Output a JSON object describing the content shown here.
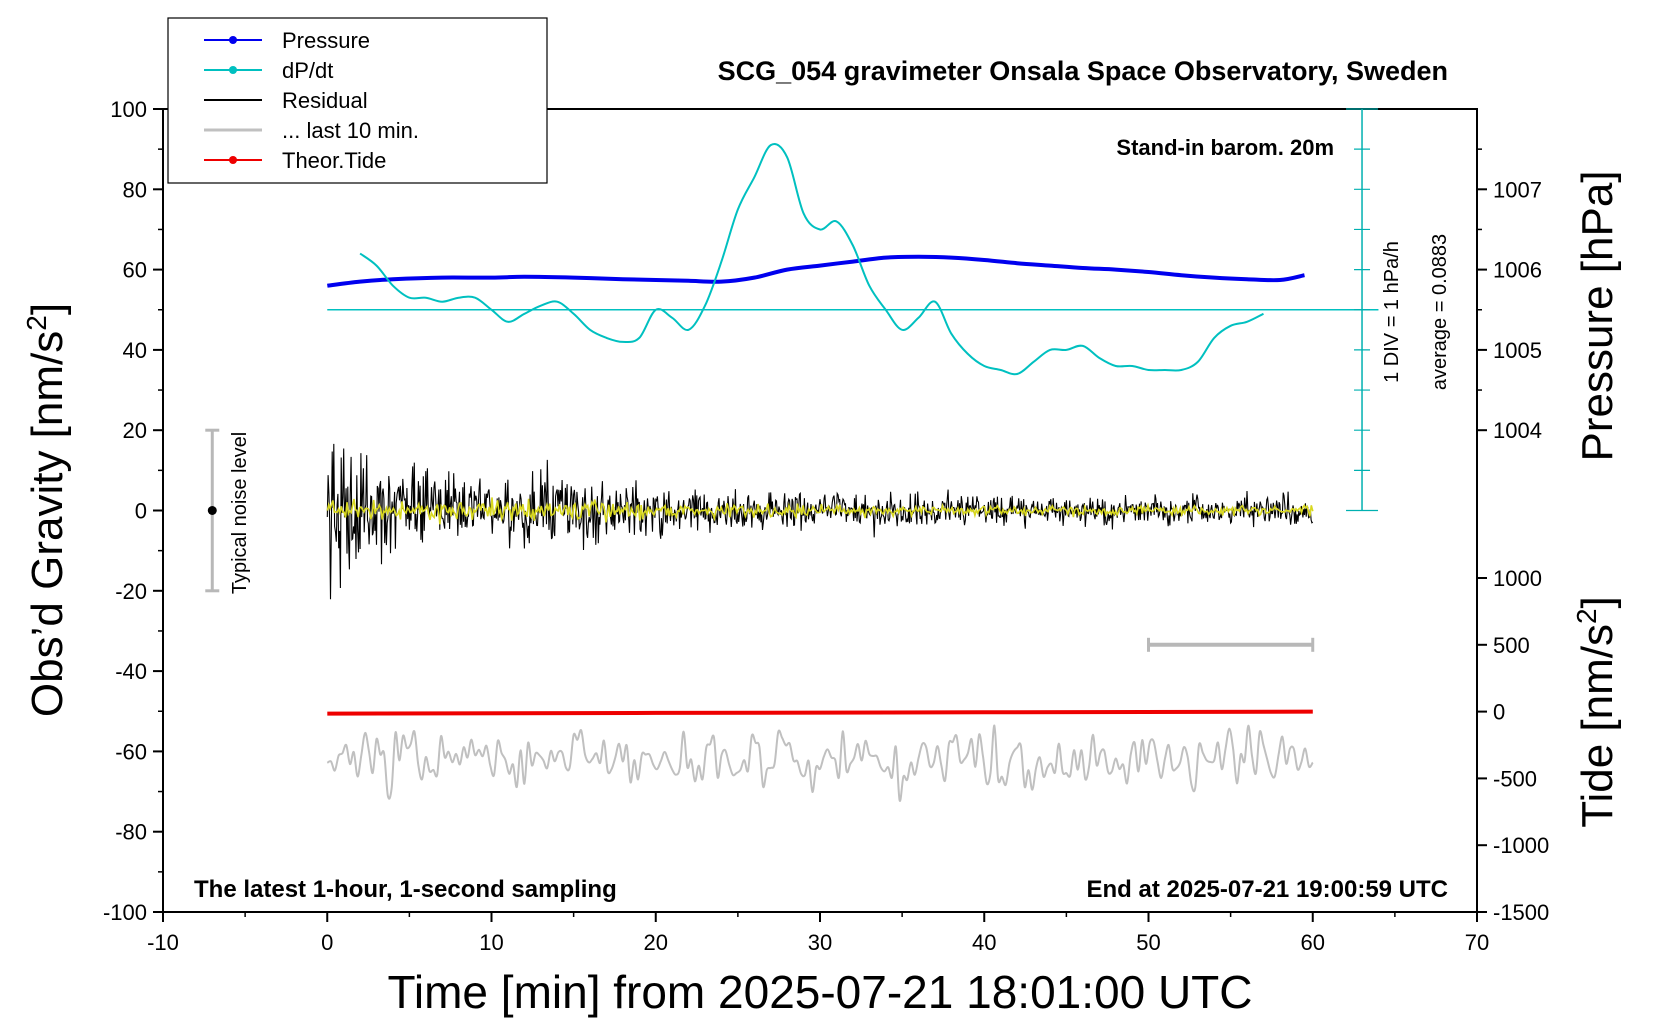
{
  "chart_data": {
    "type": "line",
    "title": "SCG_054 gravimeter Onsala Space Observatory, Sweden",
    "xlabel": "Time [min] from 2025-07-21 18:01:00 UTC",
    "ylabel_left": "Obs’d Gravity [nm/s",
    "ylabel_left_sup": "2",
    "ylabel_left_end": "]",
    "ylabel_right_pressure": "Pressure [hPa]",
    "ylabel_right_tide": "Tide [nm/s",
    "ylabel_right_tide_sup": "2",
    "ylabel_right_tide_end": "]",
    "xlim": [
      -10,
      70
    ],
    "ylim": [
      -100,
      100
    ],
    "x_ticks": [
      "-10",
      "0",
      "10",
      "20",
      "30",
      "40",
      "50",
      "60",
      "70"
    ],
    "y_ticks": [
      "100",
      "80",
      "60",
      "40",
      "20",
      "0",
      "-20",
      "-40",
      "-60",
      "-80",
      "-100"
    ],
    "pressure_ticks": [
      "1007",
      "1006",
      "1005",
      "1004"
    ],
    "pressure_tick_values": [
      1007,
      1006,
      1005,
      1004
    ],
    "tide_ticks": [
      "1000",
      "500",
      "0",
      "-500",
      "-1000",
      "-1500"
    ],
    "tide_tick_values": [
      1000,
      500,
      0,
      -500,
      -1000,
      -1500
    ],
    "annotations": {
      "stand_in": "Stand-in barom. 20m",
      "latest": "The latest 1-hour, 1-second sampling",
      "end_at": "End at 2025-07-21 19:00:59 UTC",
      "div_label": "1 DIV = 1 hPa/h",
      "average_label": "average = 0.0883",
      "noise_label": "Typical noise level"
    },
    "legend": [
      {
        "label": "Pressure",
        "color": "#0000ee",
        "marker": true
      },
      {
        "label": "dP/dt",
        "color": "#00c0c0",
        "marker": true
      },
      {
        "label": "Residual",
        "color": "#000000",
        "marker": false
      },
      {
        "label": "... last 10 min.",
        "color": "#c0c0c0",
        "marker": false
      },
      {
        "label": "Theor.Tide",
        "color": "#ee0000",
        "marker": true
      }
    ],
    "series": [
      {
        "name": "Pressure",
        "color": "#0000ee",
        "axis": "pressure_hpa",
        "x": [
          0,
          2,
          4,
          7,
          10,
          12,
          15,
          18,
          20,
          22,
          24,
          26,
          28,
          30,
          32,
          34,
          36,
          38,
          40,
          42,
          44,
          46,
          48,
          50,
          52,
          54,
          56,
          58,
          59.5
        ],
        "values": [
          1005.8,
          1005.85,
          1005.88,
          1005.9,
          1005.9,
          1005.91,
          1005.9,
          1005.88,
          1005.87,
          1005.86,
          1005.85,
          1005.9,
          1006.0,
          1006.05,
          1006.1,
          1006.15,
          1006.16,
          1006.15,
          1006.12,
          1006.08,
          1006.05,
          1006.02,
          1006.0,
          1005.97,
          1005.93,
          1005.9,
          1005.88,
          1005.87,
          1005.93
        ]
      },
      {
        "name": "dP/dt",
        "color": "#00c0c0",
        "axis": "gravity",
        "x": [
          2,
          3,
          4,
          5,
          6,
          7,
          8,
          9,
          10,
          11,
          12,
          13,
          14,
          15,
          16,
          17,
          18,
          19,
          20,
          21,
          22,
          23,
          24,
          25,
          26,
          27,
          28,
          29,
          30,
          31,
          32,
          33,
          34,
          35,
          36,
          37,
          38,
          39,
          40,
          41,
          42,
          43,
          44,
          45,
          46,
          47,
          48,
          49,
          50,
          51,
          52,
          53,
          54,
          55,
          56,
          57
        ],
        "values": [
          64,
          61,
          56,
          53,
          53,
          52,
          53,
          53,
          50,
          47,
          49,
          51,
          52,
          49,
          45,
          43,
          42,
          43,
          50,
          48,
          45,
          51,
          62,
          75,
          83,
          91,
          88,
          74,
          70,
          72,
          66,
          56,
          50,
          45,
          48,
          52,
          44,
          39,
          36,
          35,
          34,
          37,
          40,
          40,
          41,
          38,
          36,
          36,
          35,
          35,
          35,
          37,
          43,
          46,
          47,
          49
        ]
      },
      {
        "name": "Residual",
        "color": "#000000",
        "axis": "gravity",
        "note": "noise around 0; amplitude decays from about 25 near t=0 to about 5 after t=25",
        "x": [
          0,
          5,
          10,
          15,
          20,
          25,
          30,
          35,
          40,
          45,
          50,
          55,
          60
        ],
        "amplitude": [
          28,
          14,
          12,
          11,
          8,
          7,
          6,
          6,
          5,
          5,
          5,
          5,
          5
        ]
      },
      {
        "name": "... last 10 min.",
        "color": "#c0c0c0",
        "axis": "gravity",
        "x_range": [
          0,
          60
        ],
        "center": -62,
        "amplitude": 6
      },
      {
        "name": "Theor.Tide",
        "color": "#ee0000",
        "axis": "tide",
        "x": [
          0,
          20,
          40,
          60
        ],
        "values": [
          -15,
          -10,
          -5,
          0
        ]
      }
    ],
    "pressure_reference_line_gravity": 50,
    "noise_bar": {
      "x": -7,
      "low": -20,
      "high": 20
    },
    "window_bar": {
      "x_start": 50,
      "x_end": 60,
      "tide_value": 500
    }
  }
}
